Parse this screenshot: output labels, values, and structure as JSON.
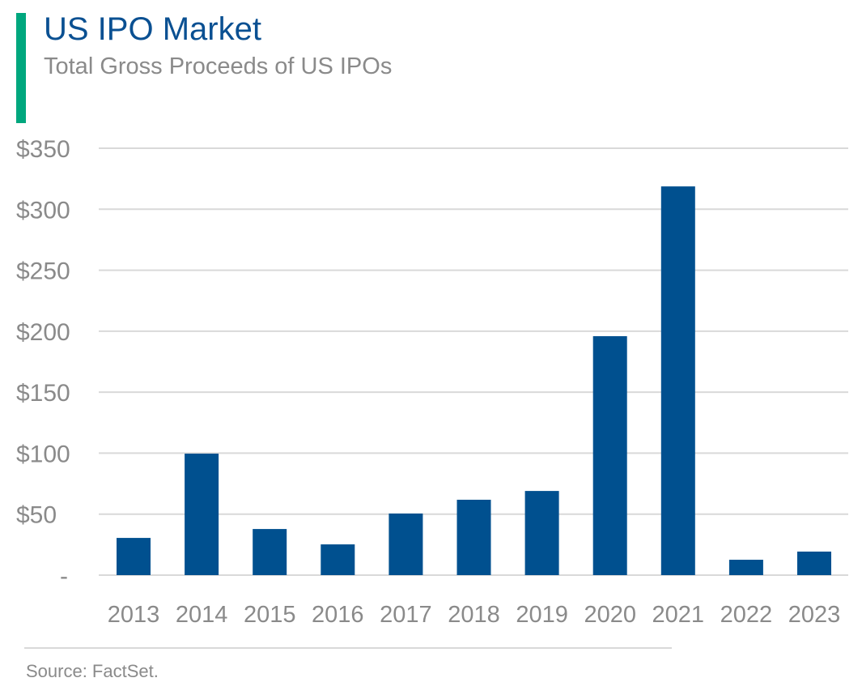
{
  "chart_data": {
    "type": "bar",
    "title": "US IPO Market",
    "subtitle": "Total Gross Proceeds of US IPOs",
    "categories": [
      "2013",
      "2014",
      "2015",
      "2016",
      "2017",
      "2018",
      "2019",
      "2020",
      "2021",
      "2022",
      "2023"
    ],
    "values": [
      30.5,
      99.6,
      37.8,
      25.2,
      50.5,
      61.8,
      69,
      195.9,
      318.7,
      12.6,
      19.3
    ],
    "ylim": [
      0,
      350
    ],
    "yticks": [
      0,
      50,
      100,
      150,
      200,
      250,
      300,
      350
    ],
    "ytick_labels": [
      "-",
      "$50",
      "$100",
      "$150",
      "$200",
      "$250",
      "$300",
      "$350"
    ],
    "xlabel": "",
    "ylabel": "",
    "grid": true,
    "bar_color": "#00508f",
    "accent_color": "#00a77e",
    "source": "Source: FactSet."
  }
}
